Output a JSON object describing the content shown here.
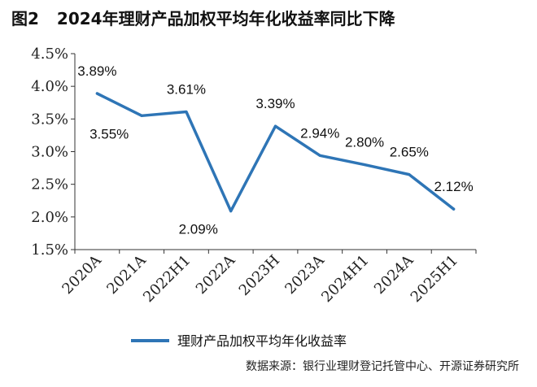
{
  "figure": {
    "number": "图2",
    "title": "2024年理财产品加权平均年化收益率同比下降"
  },
  "source": "数据来源：银行业理财登记托管中心、开源证券研究所",
  "chart_data": {
    "type": "line",
    "title": "2024年理财产品加权平均年化收益率同比下降",
    "categories": [
      "2020A",
      "2021A",
      "2022H1",
      "2022A",
      "2023H",
      "2023A",
      "2024H1",
      "2024A",
      "2025H1"
    ],
    "series": [
      {
        "name": "理财产品加权平均年化收益率",
        "values": [
          3.89,
          3.55,
          3.61,
          2.09,
          3.39,
          2.94,
          2.8,
          2.65,
          2.12
        ],
        "labels": [
          "3.89%",
          "3.55%",
          "3.61%",
          "2.09%",
          "3.39%",
          "2.94%",
          "2.80%",
          "2.65%",
          "2.12%"
        ],
        "color": "#2e75b6"
      }
    ],
    "yticks": [
      "1.5%",
      "2.0%",
      "2.5%",
      "3.0%",
      "3.5%",
      "4.0%",
      "4.5%"
    ],
    "ylim": [
      1.5,
      4.5
    ],
    "grid": false,
    "legend": "bottom"
  }
}
